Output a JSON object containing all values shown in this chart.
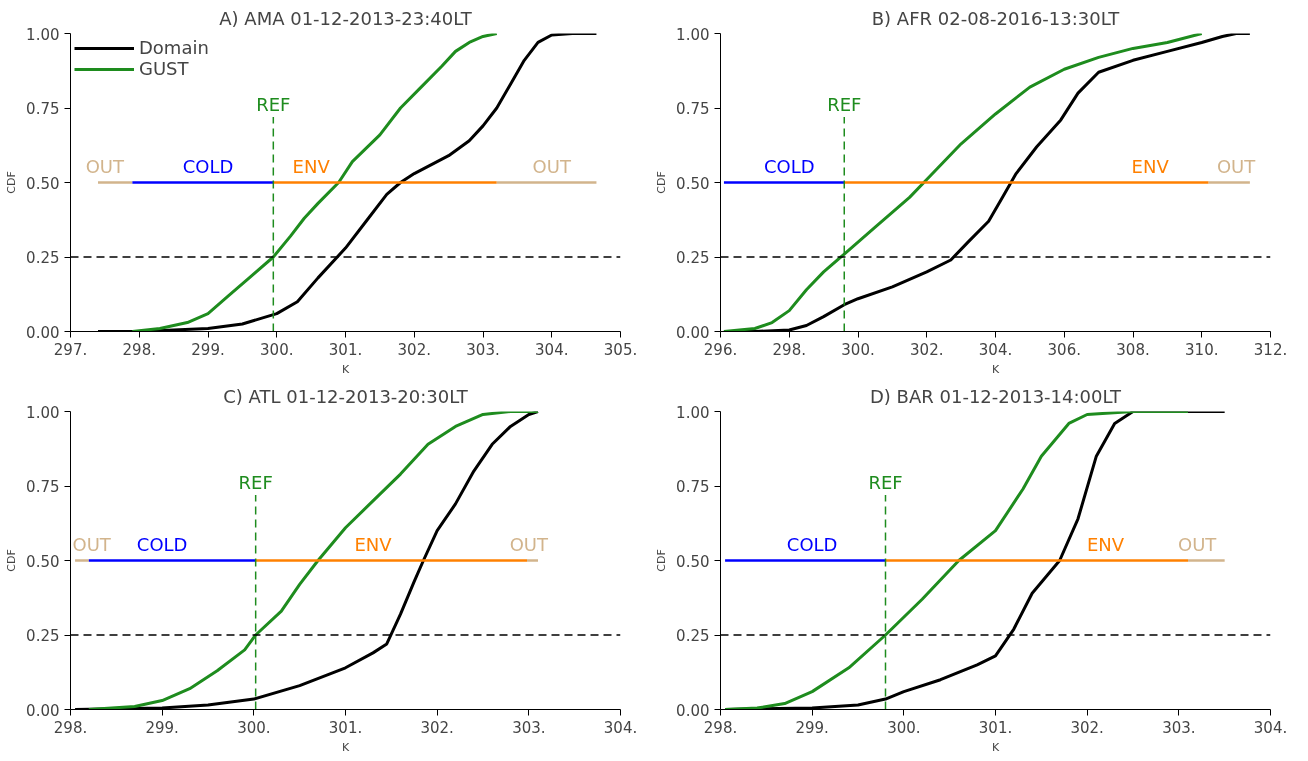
{
  "chart_data": [
    {
      "type": "line",
      "title": "A) AMA 01-12-2013-23:40LT",
      "xlabel": "K",
      "ylabel": "CDF",
      "legend": "top left",
      "grid": false,
      "xlim": [
        297,
        305
      ],
      "xticks": [
        {
          "value": 297,
          "label": "297."
        },
        {
          "value": 298,
          "label": "298."
        },
        {
          "value": 299,
          "label": "299."
        },
        {
          "value": 300,
          "label": "300."
        },
        {
          "value": 301,
          "label": "301."
        },
        {
          "value": 302,
          "label": "302."
        },
        {
          "value": 303,
          "label": "303."
        },
        {
          "value": 304,
          "label": "304."
        },
        {
          "value": 305,
          "label": "305."
        }
      ],
      "ylim": [
        0,
        1
      ],
      "yticks": [
        {
          "value": 0,
          "label": "0.00"
        },
        {
          "value": 0.25,
          "label": "0.25"
        },
        {
          "value": 0.5,
          "label": "0.50"
        },
        {
          "value": 0.75,
          "label": "0.75"
        },
        {
          "value": 1,
          "label": "1.00"
        }
      ],
      "ref_lines": [
        {
          "axis": "y",
          "value": 0.25,
          "color": "#000000",
          "line_style": "dashed"
        },
        {
          "axis": "x",
          "value": 299.95,
          "label": "REF",
          "color": "#1e8c1e",
          "line_style": "dashed"
        }
      ],
      "annotations": [
        {
          "text": "OUT",
          "x": 297.5,
          "y": 0.5
        },
        {
          "text": "COLD",
          "x": 299.0,
          "y": 0.5
        },
        {
          "text": "ENV",
          "x": 300.5,
          "y": 0.5
        },
        {
          "text": "OUT",
          "x": 304.0,
          "y": 0.5
        }
      ],
      "series": [
        {
          "name": "Domain",
          "color": "#000000",
          "x": [
            297.4,
            298,
            299,
            299.5,
            300,
            300.3,
            300.6,
            301,
            301.3,
            301.6,
            301.8,
            302,
            302.5,
            302.8,
            303,
            303.2,
            303.4,
            303.6,
            303.8,
            304,
            304.3,
            304.65
          ],
          "values": [
            0,
            0,
            0.01,
            0.025,
            0.06,
            0.1,
            0.18,
            0.28,
            0.37,
            0.46,
            0.5,
            0.53,
            0.59,
            0.64,
            0.69,
            0.75,
            0.83,
            0.91,
            0.97,
            0.995,
            1,
            1
          ]
        },
        {
          "name": "GUST",
          "color": "#1e8c1e",
          "x": [
            297.9,
            298.3,
            298.7,
            299,
            299.3,
            299.6,
            299.95,
            300.2,
            300.4,
            300.6,
            300.9,
            301.1,
            301.5,
            301.8,
            302.1,
            302.4,
            302.6,
            302.8,
            303,
            303.2
          ],
          "values": [
            0,
            0.01,
            0.03,
            0.06,
            0.12,
            0.18,
            0.25,
            0.32,
            0.38,
            0.43,
            0.5,
            0.57,
            0.66,
            0.75,
            0.82,
            0.89,
            0.94,
            0.97,
            0.99,
            1
          ]
        },
        {
          "color": "#d2b48c",
          "x": [
            297.4,
            297.9
          ],
          "values": [
            0.5,
            0.5
          ]
        },
        {
          "color": "#0000ff",
          "x": [
            297.9,
            299.95
          ],
          "values": [
            0.5,
            0.5
          ]
        },
        {
          "color": "#ff8000",
          "x": [
            299.95,
            303.2
          ],
          "values": [
            0.5,
            0.5
          ]
        },
        {
          "color": "#d2b48c",
          "x": [
            303.2,
            304.65
          ],
          "values": [
            0.5,
            0.5
          ]
        }
      ]
    },
    {
      "type": "line",
      "title": "B) AFR 02-08-2016-13:30LT",
      "xlabel": "K",
      "ylabel": "CDF",
      "grid": false,
      "xlim": [
        296,
        312
      ],
      "xticks": [
        {
          "value": 296,
          "label": "296."
        },
        {
          "value": 298,
          "label": "298."
        },
        {
          "value": 300,
          "label": "300."
        },
        {
          "value": 302,
          "label": "302."
        },
        {
          "value": 304,
          "label": "304."
        },
        {
          "value": 306,
          "label": "306."
        },
        {
          "value": 308,
          "label": "308."
        },
        {
          "value": 310,
          "label": "310."
        },
        {
          "value": 312,
          "label": "312."
        }
      ],
      "ylim": [
        0,
        1
      ],
      "yticks": [
        {
          "value": 0,
          "label": "0.00"
        },
        {
          "value": 0.25,
          "label": "0.25"
        },
        {
          "value": 0.5,
          "label": "0.50"
        },
        {
          "value": 0.75,
          "label": "0.75"
        },
        {
          "value": 1,
          "label": "1.00"
        }
      ],
      "ref_lines": [
        {
          "axis": "y",
          "value": 0.25,
          "color": "#000000",
          "line_style": "dashed"
        },
        {
          "axis": "x",
          "value": 299.6,
          "label": "REF",
          "color": "#1e8c1e",
          "line_style": "dashed"
        }
      ],
      "annotations": [
        {
          "text": "COLD",
          "x": 298.0,
          "y": 0.5
        },
        {
          "text": "ENV",
          "x": 308.5,
          "y": 0.5
        },
        {
          "text": "OUT",
          "x": 311.0,
          "y": 0.5
        }
      ],
      "series": [
        {
          "color": "#000000",
          "x": [
            296.1,
            297,
            298,
            298.5,
            299,
            299.6,
            300,
            301,
            302,
            302.7,
            303.2,
            303.8,
            304.2,
            304.6,
            305.2,
            305.9,
            306.4,
            307,
            308,
            309,
            310,
            310.6,
            311,
            311.4
          ],
          "values": [
            0,
            0,
            0.005,
            0.02,
            0.05,
            0.09,
            0.11,
            0.15,
            0.2,
            0.24,
            0.3,
            0.37,
            0.45,
            0.53,
            0.62,
            0.71,
            0.8,
            0.87,
            0.91,
            0.94,
            0.97,
            0.99,
            1,
            1
          ]
        },
        {
          "color": "#1e8c1e",
          "x": [
            296.1,
            297,
            297.5,
            298,
            298.5,
            299,
            299.6,
            300.5,
            301.5,
            302,
            303,
            304,
            305,
            306,
            307,
            308,
            309,
            310
          ],
          "values": [
            0,
            0.01,
            0.03,
            0.07,
            0.14,
            0.2,
            0.26,
            0.35,
            0.45,
            0.51,
            0.63,
            0.73,
            0.82,
            0.88,
            0.92,
            0.95,
            0.97,
            1
          ]
        },
        {
          "color": "#0000ff",
          "x": [
            296.1,
            299.6
          ],
          "values": [
            0.5,
            0.5
          ]
        },
        {
          "color": "#ff8000",
          "x": [
            299.6,
            310.2
          ],
          "values": [
            0.5,
            0.5
          ]
        },
        {
          "color": "#d2b48c",
          "x": [
            310.2,
            311.4
          ],
          "values": [
            0.5,
            0.5
          ]
        }
      ]
    },
    {
      "type": "line",
      "title": "C) ATL 01-12-2013-20:30LT",
      "xlabel": "K",
      "ylabel": "CDF",
      "grid": false,
      "xlim": [
        298,
        304
      ],
      "xticks": [
        {
          "value": 298,
          "label": "298."
        },
        {
          "value": 299,
          "label": "299."
        },
        {
          "value": 300,
          "label": "300."
        },
        {
          "value": 301,
          "label": "301."
        },
        {
          "value": 302,
          "label": "302."
        },
        {
          "value": 303,
          "label": "303."
        },
        {
          "value": 304,
          "label": "304."
        }
      ],
      "ylim": [
        0,
        1
      ],
      "yticks": [
        {
          "value": 0,
          "label": "0.00"
        },
        {
          "value": 0.25,
          "label": "0.25"
        },
        {
          "value": 0.5,
          "label": "0.50"
        },
        {
          "value": 0.75,
          "label": "0.75"
        },
        {
          "value": 1,
          "label": "1.00"
        }
      ],
      "ref_lines": [
        {
          "axis": "y",
          "value": 0.25,
          "color": "#000000",
          "line_style": "dashed"
        },
        {
          "axis": "x",
          "value": 300.02,
          "label": "REF",
          "color": "#1e8c1e",
          "line_style": "dashed"
        }
      ],
      "annotations": [
        {
          "text": "OUT",
          "x": 298.1,
          "y": 0.5
        },
        {
          "text": "COLD",
          "x": 299.0,
          "y": 0.5
        },
        {
          "text": "ENV",
          "x": 301.3,
          "y": 0.5
        },
        {
          "text": "OUT",
          "x": 303.0,
          "y": 0.5
        }
      ],
      "series": [
        {
          "color": "#000000",
          "x": [
            298.05,
            299,
            299.5,
            300,
            300.5,
            301,
            301.3,
            301.45,
            301.6,
            301.75,
            301.85,
            302,
            302.2,
            302.4,
            302.6,
            302.8,
            303,
            303.1
          ],
          "values": [
            0,
            0.005,
            0.015,
            0.035,
            0.08,
            0.14,
            0.19,
            0.22,
            0.32,
            0.43,
            0.5,
            0.6,
            0.69,
            0.8,
            0.89,
            0.95,
            0.99,
            1
          ]
        },
        {
          "color": "#1e8c1e",
          "x": [
            298.2,
            298.7,
            299,
            299.3,
            299.6,
            299.9,
            300.02,
            300.3,
            300.5,
            300.7,
            301,
            301.3,
            301.6,
            301.9,
            302.2,
            302.5,
            302.8,
            303.1
          ],
          "values": [
            0,
            0.01,
            0.03,
            0.07,
            0.13,
            0.2,
            0.25,
            0.33,
            0.42,
            0.5,
            0.61,
            0.7,
            0.79,
            0.89,
            0.95,
            0.99,
            1,
            1
          ]
        },
        {
          "color": "#d2b48c",
          "x": [
            298.05,
            298.2
          ],
          "values": [
            0.5,
            0.5
          ]
        },
        {
          "color": "#0000ff",
          "x": [
            298.2,
            300.02
          ],
          "values": [
            0.5,
            0.5
          ]
        },
        {
          "color": "#ff8000",
          "x": [
            300.02,
            302.98
          ],
          "values": [
            0.5,
            0.5
          ]
        },
        {
          "color": "#d2b48c",
          "x": [
            302.98,
            303.1
          ],
          "values": [
            0.5,
            0.5
          ]
        }
      ]
    },
    {
      "type": "line",
      "title": "D) BAR 01-12-2013-14:00LT",
      "xlabel": "K",
      "ylabel": "CDF",
      "grid": false,
      "xlim": [
        298,
        304
      ],
      "xticks": [
        {
          "value": 298,
          "label": "298."
        },
        {
          "value": 299,
          "label": "299."
        },
        {
          "value": 300,
          "label": "300."
        },
        {
          "value": 301,
          "label": "301."
        },
        {
          "value": 302,
          "label": "302."
        },
        {
          "value": 303,
          "label": "303."
        },
        {
          "value": 304,
          "label": "304."
        }
      ],
      "ylim": [
        0,
        1
      ],
      "yticks": [
        {
          "value": 0,
          "label": "0.00"
        },
        {
          "value": 0.25,
          "label": "0.25"
        },
        {
          "value": 0.5,
          "label": "0.50"
        },
        {
          "value": 0.75,
          "label": "0.75"
        },
        {
          "value": 1,
          "label": "1.00"
        }
      ],
      "ref_lines": [
        {
          "axis": "y",
          "value": 0.25,
          "color": "#000000",
          "line_style": "dashed"
        },
        {
          "axis": "x",
          "value": 299.8,
          "label": "REF",
          "color": "#1e8c1e",
          "line_style": "dashed"
        }
      ],
      "annotations": [
        {
          "text": "COLD",
          "x": 299.0,
          "y": 0.5
        },
        {
          "text": "ENV",
          "x": 302.2,
          "y": 0.5
        },
        {
          "text": "OUT",
          "x": 303.2,
          "y": 0.5
        }
      ],
      "series": [
        {
          "color": "#000000",
          "x": [
            298.05,
            299,
            299.5,
            299.8,
            300,
            300.4,
            300.8,
            301,
            301.2,
            301.4,
            301.7,
            301.9,
            302.1,
            302.3,
            302.5,
            303.5
          ],
          "values": [
            0,
            0.005,
            0.015,
            0.035,
            0.06,
            0.1,
            0.15,
            0.18,
            0.27,
            0.39,
            0.5,
            0.64,
            0.85,
            0.96,
            1,
            1
          ]
        },
        {
          "color": "#1e8c1e",
          "x": [
            298.05,
            298.4,
            298.7,
            299,
            299.4,
            299.8,
            300.2,
            300.6,
            301,
            301.3,
            301.5,
            301.8,
            302,
            302.5,
            303.1
          ],
          "values": [
            0,
            0.005,
            0.02,
            0.06,
            0.14,
            0.25,
            0.37,
            0.5,
            0.6,
            0.74,
            0.85,
            0.96,
            0.99,
            1,
            1
          ]
        },
        {
          "color": "#0000ff",
          "x": [
            298.05,
            299.8
          ],
          "values": [
            0.5,
            0.5
          ]
        },
        {
          "color": "#ff8000",
          "x": [
            299.8,
            303.1
          ],
          "values": [
            0.5,
            0.5
          ]
        },
        {
          "color": "#d2b48c",
          "x": [
            303.1,
            303.5
          ],
          "values": [
            0.5,
            0.5
          ]
        }
      ]
    }
  ]
}
